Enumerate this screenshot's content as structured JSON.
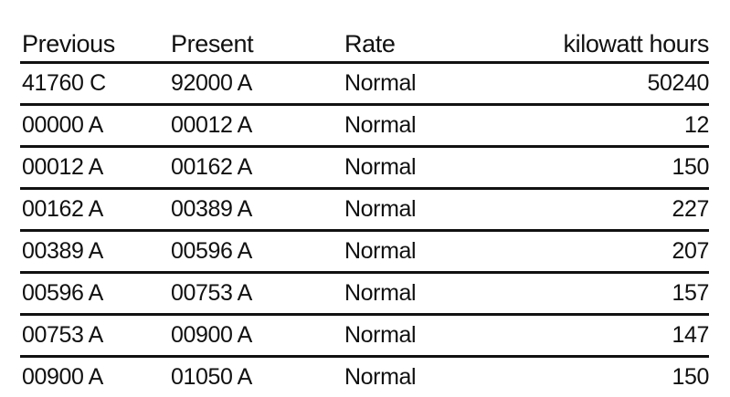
{
  "table": {
    "headers": {
      "previous": "Previous",
      "present": "Present",
      "rate": "Rate",
      "kwh": "kilowatt hours"
    },
    "rows": [
      {
        "previous": "41760 C",
        "present": "92000 A",
        "rate": "Normal",
        "kwh": "50240"
      },
      {
        "previous": "00000 A",
        "present": "00012 A",
        "rate": "Normal",
        "kwh": "12"
      },
      {
        "previous": "00012 A",
        "present": "00162 A",
        "rate": "Normal",
        "kwh": "150"
      },
      {
        "previous": "00162 A",
        "present": "00389 A",
        "rate": "Normal",
        "kwh": "227"
      },
      {
        "previous": "00389 A",
        "present": "00596 A",
        "rate": "Normal",
        "kwh": "207"
      },
      {
        "previous": "00596 A",
        "present": "00753 A",
        "rate": "Normal",
        "kwh": "157"
      },
      {
        "previous": "00753 A",
        "present": "00900 A",
        "rate": "Normal",
        "kwh": "147"
      },
      {
        "previous": "00900 A",
        "present": "01050 A",
        "rate": "Normal",
        "kwh": "150"
      }
    ]
  }
}
